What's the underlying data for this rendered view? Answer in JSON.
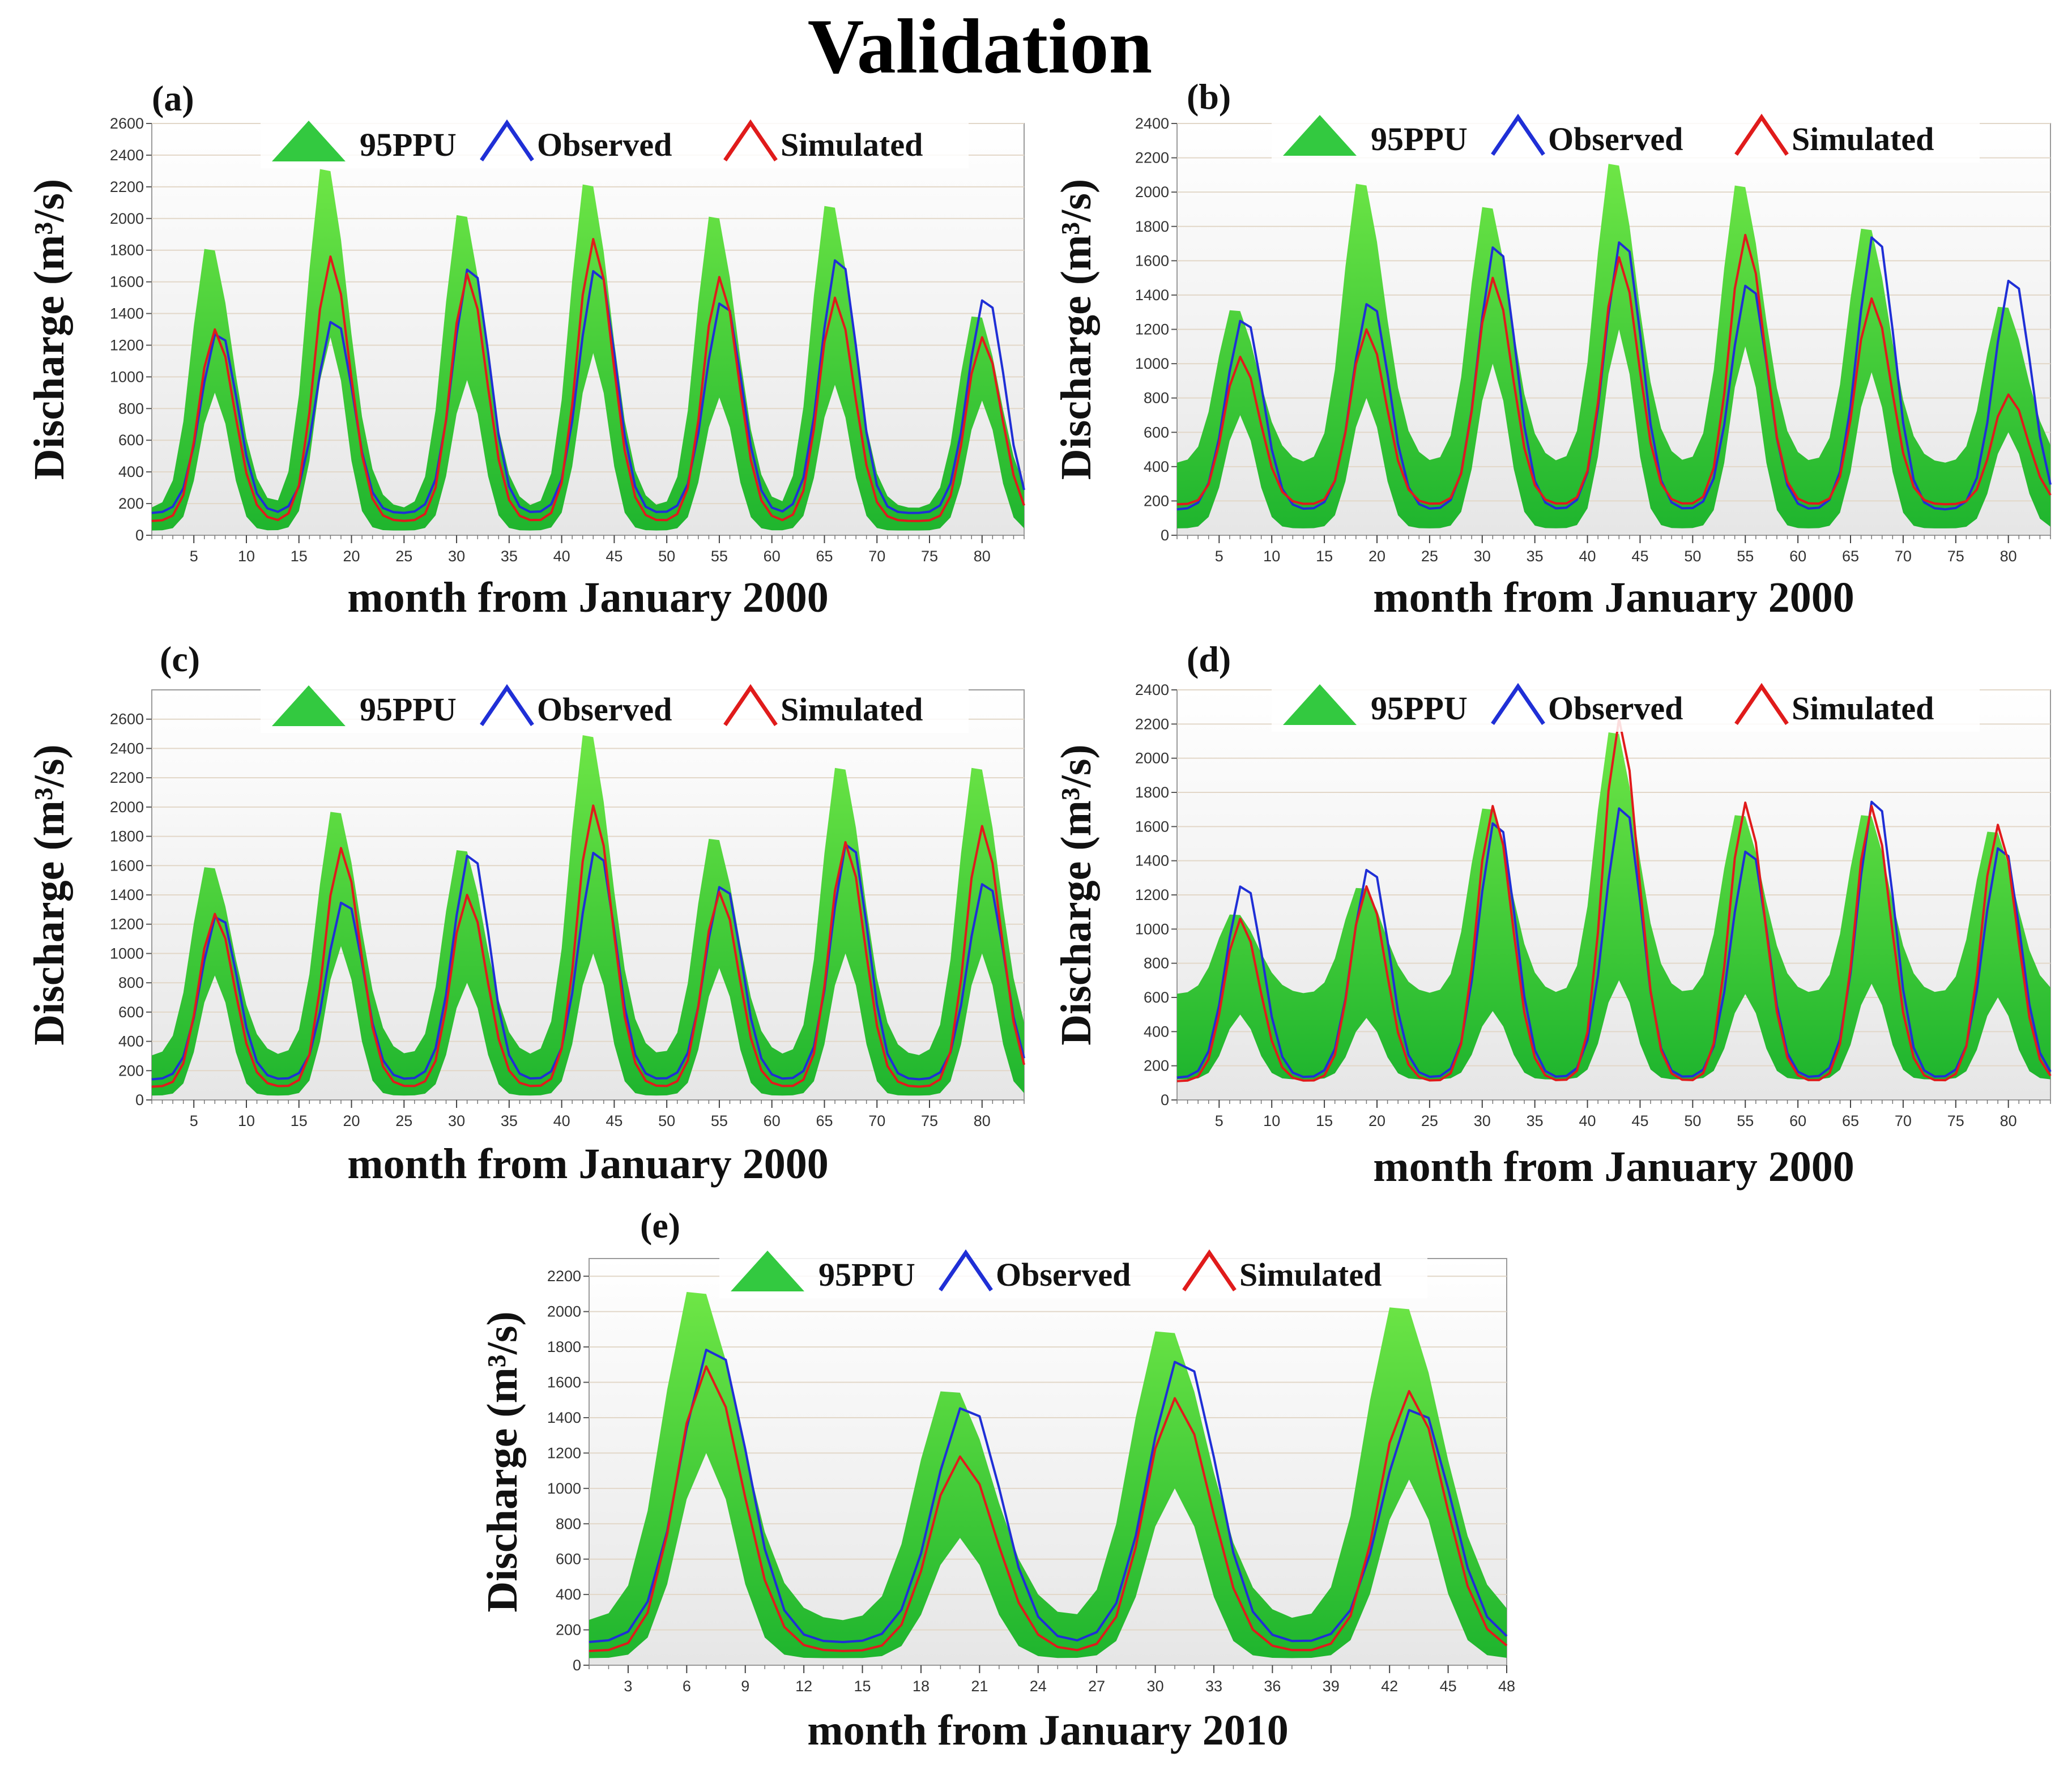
{
  "figure": {
    "title": "Validation",
    "colors": {
      "band": "#2fc43a",
      "band_light": "#5ee04b",
      "observed": "#1f2fd6",
      "simulated": "#e01b1b",
      "grid": "#e2d7c8",
      "plot_bg_top": "#ffffff",
      "plot_bg_bottom": "#e9e9e9"
    }
  },
  "chart_data": [
    {
      "id": "a",
      "panel_label": "(a)",
      "type": "line",
      "xlabel": "month from January 2000",
      "ylabel": "Discharge (m³/s)",
      "legend": {
        "band": "95PPU",
        "observed": "Observed",
        "simulated": "Simulated"
      },
      "ylim": [
        0,
        2600
      ],
      "yticks": [
        0,
        200,
        400,
        600,
        800,
        1000,
        1200,
        1400,
        1600,
        1800,
        2000,
        2200,
        2400,
        2600
      ],
      "xlim": [
        1,
        84
      ],
      "xticks": [
        5,
        10,
        15,
        20,
        25,
        30,
        35,
        40,
        45,
        50,
        55,
        60,
        65,
        70,
        75,
        80
      ],
      "peaks": [
        7,
        18,
        31,
        43,
        55,
        66,
        80
      ],
      "observed_peaks": [
        1300,
        1380,
        1720,
        1710,
        1500,
        1780,
        1520
      ],
      "observed_base": 140,
      "simulated_peaks": [
        1300,
        1760,
        1650,
        1870,
        1630,
        1500,
        1250
      ],
      "simulated_base": 90,
      "band_upper_peaks": [
        1860,
        2380,
        2080,
        2280,
        2070,
        2140,
        1420
      ],
      "band_lower_peaks": [
        900,
        1250,
        980,
        1150,
        870,
        950,
        850
      ],
      "band_upper_base": 170,
      "band_lower_base": 30
    },
    {
      "id": "b",
      "panel_label": "(b)",
      "type": "line",
      "xlabel": "month from January 2000",
      "ylabel": "Discharge (m³/s)",
      "legend": {
        "band": "95PPU",
        "observed": "Observed",
        "simulated": "Simulated"
      },
      "ylim": [
        0,
        2400
      ],
      "yticks": [
        0,
        200,
        400,
        600,
        800,
        1000,
        1200,
        1400,
        1600,
        1800,
        2000,
        2200,
        2400
      ],
      "xlim": [
        1,
        84
      ],
      "xticks": [
        5,
        10,
        15,
        20,
        25,
        30,
        35,
        40,
        45,
        50,
        55,
        60,
        65,
        70,
        75,
        80
      ],
      "peaks": [
        7,
        19,
        31,
        43,
        55,
        67,
        80
      ],
      "observed_peaks": [
        1280,
        1380,
        1720,
        1750,
        1490,
        1780,
        1520
      ],
      "observed_base": 150,
      "simulated_peaks": [
        1040,
        1200,
        1500,
        1620,
        1750,
        1380,
        820
      ],
      "simulated_base": 180,
      "band_upper_peaks": [
        1340,
        2100,
        1960,
        2220,
        2090,
        1830,
        1360
      ],
      "band_lower_peaks": [
        700,
        800,
        1000,
        1200,
        1100,
        950,
        600
      ],
      "band_upper_base": 420,
      "band_lower_base": 40
    },
    {
      "id": "c",
      "panel_label": "(c)",
      "type": "line",
      "xlabel": "month from January 2000",
      "ylabel": "Discharge (m³/s)",
      "legend": {
        "band": "95PPU",
        "observed": "Observed",
        "simulated": "Simulated"
      },
      "ylim": [
        0,
        2800
      ],
      "yticks": [
        0,
        200,
        400,
        600,
        800,
        1000,
        1200,
        1400,
        1600,
        1800,
        2000,
        2200,
        2400,
        2600
      ],
      "xlim": [
        1,
        84
      ],
      "xticks": [
        5,
        10,
        15,
        20,
        25,
        30,
        35,
        40,
        45,
        50,
        55,
        60,
        65,
        70,
        75,
        80
      ],
      "peaks": [
        7,
        19,
        31,
        43,
        55,
        67,
        80
      ],
      "observed_peaks": [
        1280,
        1380,
        1710,
        1730,
        1490,
        1790,
        1510
      ],
      "observed_base": 140,
      "simulated_peaks": [
        1270,
        1720,
        1400,
        2010,
        1420,
        1760,
        1870
      ],
      "simulated_base": 90,
      "band_upper_peaks": [
        1630,
        2020,
        1750,
        2560,
        1830,
        2330,
        2330
      ],
      "band_lower_peaks": [
        850,
        1050,
        800,
        1000,
        900,
        1000,
        1000
      ],
      "band_upper_base": 300,
      "band_lower_base": 30
    },
    {
      "id": "d",
      "panel_label": "(d)",
      "type": "line",
      "xlabel": "month from January 2000",
      "ylabel": "Discharge (m³/s)",
      "legend": {
        "band": "95PPU",
        "observed": "Observed",
        "simulated": "Simulated"
      },
      "ylim": [
        0,
        2400
      ],
      "yticks": [
        0,
        200,
        400,
        600,
        800,
        1000,
        1200,
        1400,
        1600,
        1800,
        2000,
        2200,
        2400
      ],
      "xlim": [
        1,
        84
      ],
      "xticks": [
        5,
        10,
        15,
        20,
        25,
        30,
        35,
        40,
        45,
        50,
        55,
        60,
        65,
        70,
        75,
        80
      ],
      "peaks": [
        7,
        19,
        31,
        43,
        55,
        67,
        79
      ],
      "observed_peaks": [
        1280,
        1380,
        1660,
        1750,
        1490,
        1790,
        1510
      ],
      "observed_base": 130,
      "simulated_peaks": [
        1060,
        1250,
        1720,
        2230,
        1740,
        1720,
        1610
      ],
      "simulated_base": 110,
      "band_upper_peaks": [
        1100,
        1260,
        1740,
        2200,
        1700,
        1700,
        1600
      ],
      "band_lower_peaks": [
        500,
        480,
        520,
        700,
        620,
        680,
        600
      ],
      "band_upper_base": 620,
      "band_lower_base": 120
    },
    {
      "id": "e",
      "panel_label": "(e)",
      "type": "line",
      "xlabel": "month from January 2010",
      "ylabel": "Discharge (m³/s)",
      "legend": {
        "band": "95PPU",
        "observed": "Observed",
        "simulated": "Simulated"
      },
      "ylim": [
        0,
        2300
      ],
      "yticks": [
        0,
        200,
        400,
        600,
        800,
        1000,
        1200,
        1400,
        1600,
        1800,
        2000,
        2200
      ],
      "xlim": [
        1,
        48
      ],
      "xticks": [
        3,
        6,
        9,
        12,
        15,
        18,
        21,
        24,
        27,
        30,
        33,
        36,
        39,
        42,
        45,
        48
      ],
      "peaks": [
        7,
        20,
        31,
        43
      ],
      "observed_peaks": [
        1830,
        1490,
        1760,
        1480
      ],
      "observed_base": 130,
      "simulated_peaks": [
        1690,
        1180,
        1510,
        1550
      ],
      "simulated_base": 80,
      "band_upper_peaks": [
        2170,
        1590,
        1940,
        2080
      ],
      "band_lower_peaks": [
        1200,
        720,
        1000,
        1050
      ],
      "band_upper_base": 250,
      "band_lower_base": 40
    }
  ]
}
